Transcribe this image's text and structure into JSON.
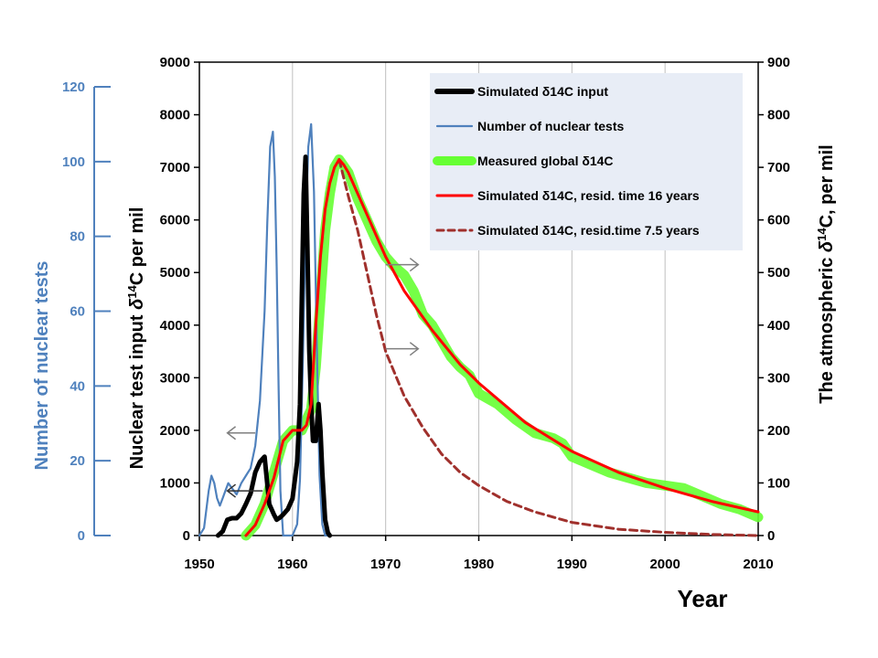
{
  "chart_data": {
    "type": "line",
    "xlabel": "Year",
    "x_range": [
      1950,
      2010
    ],
    "x_ticks": [
      "1950",
      "1960",
      "1970",
      "1980",
      "1990",
      "2000",
      "2010"
    ],
    "grid": "vertical gridlines at decades",
    "axes": {
      "left_outer": {
        "label": "Number of nuclear tests",
        "range": [
          0,
          120
        ],
        "ticks": [
          "0",
          "20",
          "40",
          "60",
          "80",
          "100",
          "120"
        ],
        "color": "#4f81bd"
      },
      "left_inner": {
        "label_prefix": "Nuclear test input ",
        "label_symbol": "δ",
        "label_sup": "14",
        "label_suffix": "C  per mil",
        "range": [
          0,
          9000
        ],
        "ticks": [
          "0",
          "1000",
          "2000",
          "3000",
          "4000",
          "5000",
          "6000",
          "7000",
          "8000",
          "9000"
        ]
      },
      "right": {
        "label_prefix": "The atmospheric  ",
        "label_symbol": "δ",
        "label_sup": "14",
        "label_suffix": "C,  per mil",
        "range": [
          0,
          900
        ],
        "ticks": [
          "0",
          "100",
          "200",
          "300",
          "400",
          "500",
          "600",
          "700",
          "800",
          "900"
        ]
      }
    },
    "legend_position": "top-right",
    "series": [
      {
        "name": "Simulated δ14C input",
        "axis": "left_inner",
        "color": "#000000",
        "style": "thick",
        "x": [
          1952.0,
          1952.5,
          1953.0,
          1953.5,
          1954.0,
          1954.5,
          1955.0,
          1955.5,
          1956.0,
          1956.5,
          1957.0,
          1957.5,
          1958.0,
          1958.3,
          1958.7,
          1959.0,
          1959.5,
          1960.0,
          1960.5,
          1960.8,
          1961.0,
          1961.2,
          1961.4,
          1961.6,
          1961.8,
          1962.0,
          1962.2,
          1962.5,
          1962.8,
          1963.0,
          1963.2,
          1963.5,
          1963.8,
          1964.0
        ],
        "y": [
          0,
          80,
          300,
          330,
          330,
          420,
          600,
          800,
          1200,
          1400,
          1500,
          600,
          400,
          300,
          350,
          400,
          500,
          700,
          1400,
          2500,
          4500,
          6500,
          7200,
          5500,
          3500,
          2500,
          1800,
          1800,
          2500,
          2000,
          1200,
          300,
          50,
          0
        ]
      },
      {
        "name": "Number of nuclear tests",
        "axis": "left_outer",
        "color": "#4f81bd",
        "style": "thin",
        "x": [
          1950.0,
          1950.5,
          1951.0,
          1951.3,
          1951.6,
          1951.9,
          1952.2,
          1952.5,
          1952.8,
          1953.1,
          1953.4,
          1953.7,
          1954.0,
          1954.5,
          1955.0,
          1955.5,
          1956.0,
          1956.5,
          1957.0,
          1957.3,
          1957.6,
          1957.9,
          1958.1,
          1958.3,
          1958.5,
          1958.7,
          1959.0,
          1959.5,
          1960.0,
          1960.5,
          1960.8,
          1961.1,
          1961.4,
          1961.7,
          1962.0,
          1962.3,
          1962.6,
          1962.9,
          1963.2,
          1963.5,
          1964.0
        ],
        "y": [
          0,
          2,
          12,
          16,
          14,
          10,
          8,
          10,
          12,
          14,
          13,
          12,
          11,
          14,
          16,
          18,
          24,
          36,
          60,
          84,
          104,
          108,
          96,
          72,
          40,
          12,
          0,
          0,
          0,
          3,
          15,
          45,
          82,
          104,
          110,
          92,
          52,
          16,
          3,
          0,
          0
        ]
      },
      {
        "name": "Measured global δ14C",
        "axis": "right",
        "color": "#66ff33",
        "style": "wide",
        "x": [
          1955.0,
          1956.0,
          1957.0,
          1958.0,
          1959.0,
          1960.0,
          1961.0,
          1962.0,
          1962.5,
          1963.0,
          1963.5,
          1964.0,
          1964.5,
          1965.0,
          1966.0,
          1967.0,
          1968.0,
          1969.0,
          1970.0,
          1971.0,
          1972.0,
          1973.0,
          1974.0,
          1975.0,
          1976.0,
          1977.0,
          1978.0,
          1979.0,
          1980.0,
          1982.0,
          1984.0,
          1986.0,
          1988.0,
          1989.0,
          1990.0,
          1992.0,
          1994.0,
          1996.0,
          1998.0,
          2000.0,
          2002.0,
          2004.0,
          2006.0,
          2008.0,
          2010.0
        ],
        "y": [
          0,
          20,
          60,
          120,
          180,
          200,
          200,
          240,
          320,
          450,
          580,
          650,
          700,
          715,
          690,
          640,
          600,
          560,
          530,
          510,
          495,
          465,
          420,
          400,
          370,
          340,
          320,
          305,
          270,
          250,
          220,
          195,
          185,
          175,
          150,
          135,
          120,
          110,
          100,
          95,
          90,
          75,
          60,
          50,
          35
        ]
      },
      {
        "name": "Simulated δ14C, resid. time 16 years",
        "axis": "right",
        "color": "#ff0000",
        "style": "solid",
        "x": [
          1955.0,
          1956.0,
          1957.0,
          1958.0,
          1959.0,
          1960.0,
          1961.0,
          1961.5,
          1962.0,
          1962.5,
          1963.0,
          1963.5,
          1964.0,
          1964.5,
          1965.0,
          1965.5,
          1966.0,
          1968.0,
          1970.0,
          1972.0,
          1975.0,
          1978.0,
          1980.0,
          1985.0,
          1990.0,
          1995.0,
          2000.0,
          2005.0,
          2010.0
        ],
        "y": [
          0,
          20,
          60,
          110,
          180,
          200,
          200,
          210,
          250,
          400,
          530,
          620,
          670,
          700,
          715,
          705,
          690,
          610,
          530,
          465,
          390,
          325,
          290,
          215,
          160,
          120,
          90,
          65,
          45
        ]
      },
      {
        "name": "Simulated δ14C, resid.time 7.5 years",
        "axis": "right",
        "color": "#a0302c",
        "style": "dashed",
        "x": [
          1965.0,
          1966.0,
          1967.0,
          1968.0,
          1969.0,
          1970.0,
          1972.0,
          1974.0,
          1976.0,
          1978.0,
          1980.0,
          1983.0,
          1986.0,
          1990.0,
          1995.0,
          2000.0,
          2005.0,
          2010.0
        ],
        "y": [
          715,
          645,
          580,
          500,
          420,
          350,
          265,
          205,
          155,
          120,
          95,
          65,
          45,
          25,
          12,
          6,
          2,
          0
        ]
      }
    ],
    "annotations": [
      {
        "type": "arrow",
        "direction": "left",
        "from_x": 1956.0,
        "to_x": 1953.0,
        "y_axis": "left_inner",
        "y": 1950,
        "color": "#7f7f7f"
      },
      {
        "type": "arrow",
        "direction": "left",
        "from_x": 1956.8,
        "to_x": 1953.0,
        "y_axis": "left_inner",
        "y": 850,
        "color": "#333333"
      },
      {
        "type": "arrow",
        "direction": "right",
        "from_x": 1970.0,
        "to_x": 1973.5,
        "y_axis": "left_inner",
        "y": 5150,
        "color": "#7f7f7f"
      },
      {
        "type": "arrow",
        "direction": "right",
        "from_x": 1970.0,
        "to_x": 1973.5,
        "y_axis": "left_inner",
        "y": 3550,
        "color": "#7f7f7f"
      }
    ]
  }
}
